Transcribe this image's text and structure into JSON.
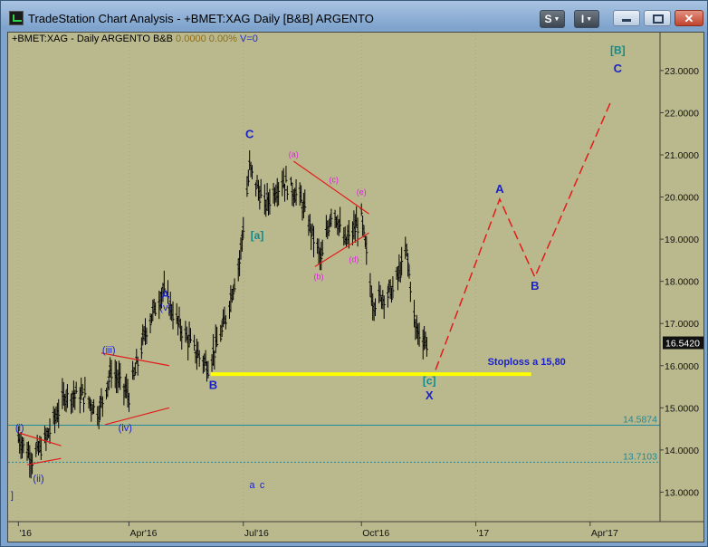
{
  "window": {
    "title": "TradeStation Chart Analysis - +BMET:XAG Daily [B&B] ARGENTO",
    "s_button": "S",
    "i_button": "I"
  },
  "chart_header": {
    "symbol": "+BMET:XAG - Daily ARGENTO B&B",
    "value1": "0.0000",
    "value2": "0.00%",
    "vlabel": "V=0"
  },
  "colors": {
    "background": "#bab98e",
    "bars": "#000000",
    "projection": "#e21b1b",
    "stoploss_line": "#ffff00",
    "wave_labels": "#1a22c8",
    "subwave_labels": "#e020e0",
    "bracket_labels": "#108a8a",
    "hlines": "#1f8a9a"
  },
  "chart_data": {
    "type": "candlestick",
    "y_axis": {
      "ticks": [
        "13.0000",
        "14.0000",
        "15.0000",
        "16.0000",
        "17.0000",
        "18.0000",
        "19.0000",
        "20.0000",
        "21.0000",
        "22.0000",
        "23.0000"
      ],
      "range": [
        12.3,
        23.9
      ],
      "last_price": "16.5420"
    },
    "x_axis": {
      "labels": [
        {
          "text": "'16",
          "date": "2016-01-04"
        },
        {
          "text": "Apr'16",
          "date": "2016-04-01"
        },
        {
          "text": "Jul'16",
          "date": "2016-07-01"
        },
        {
          "text": "Oct'16",
          "date": "2016-10-03"
        },
        {
          "text": "'17",
          "date": "2017-01-02"
        },
        {
          "text": "Apr'17",
          "date": "2017-04-03"
        }
      ]
    },
    "price_path": [
      [
        "2016-01-04",
        14.3
      ],
      [
        "2016-01-15",
        13.8
      ],
      [
        "2016-01-25",
        14.2
      ],
      [
        "2016-02-10",
        15.3
      ],
      [
        "2016-02-25",
        15.3
      ],
      [
        "2016-03-08",
        14.9
      ],
      [
        "2016-03-18",
        15.9
      ],
      [
        "2016-04-01",
        15.3
      ],
      [
        "2016-04-15",
        16.9
      ],
      [
        "2016-04-28",
        17.8
      ],
      [
        "2016-05-10",
        17.0
      ],
      [
        "2016-05-25",
        16.3
      ],
      [
        "2016-06-03",
        16.0
      ],
      [
        "2016-06-15",
        16.9
      ],
      [
        "2016-06-28",
        18.5
      ],
      [
        "2016-07-06",
        20.7
      ],
      [
        "2016-07-18",
        19.8
      ],
      [
        "2016-08-01",
        20.4
      ],
      [
        "2016-08-15",
        20.0
      ],
      [
        "2016-09-01",
        18.5
      ],
      [
        "2016-09-10",
        19.8
      ],
      [
        "2016-09-20",
        18.9
      ],
      [
        "2016-10-03",
        19.5
      ],
      [
        "2016-10-12",
        17.5
      ],
      [
        "2016-10-28",
        17.8
      ],
      [
        "2016-11-08",
        18.7
      ],
      [
        "2016-11-15",
        16.9
      ],
      [
        "2016-11-24",
        16.55
      ]
    ],
    "levels": [
      {
        "label": "14.5874",
        "value": 14.5874,
        "style": "solid"
      },
      {
        "label": "13.7103",
        "value": 13.7103,
        "style": "dotted"
      }
    ],
    "stoploss": {
      "label": "Stoploss  a 15,80",
      "value": 15.8,
      "from": "2016-06-05",
      "to": "2017-02-15"
    },
    "projection": [
      [
        "2016-12-01",
        15.9
      ],
      [
        "2017-01-21",
        19.95
      ],
      [
        "2017-02-18",
        18.1
      ],
      [
        "2017-04-20",
        22.3
      ]
    ],
    "annotations": [
      {
        "text": "(i)",
        "date": "2016-01-05",
        "value": 14.45,
        "kind": "blue"
      },
      {
        "text": "(ii)",
        "date": "2016-01-20",
        "value": 13.25,
        "kind": "blue"
      },
      {
        "text": "(iii)",
        "date": "2016-03-16",
        "value": 16.3,
        "kind": "blue"
      },
      {
        "text": "(iv)",
        "date": "2016-03-29",
        "value": 14.45,
        "kind": "blue"
      },
      {
        "text": "(v)",
        "date": "2016-04-30",
        "value": 17.3,
        "kind": "blue"
      },
      {
        "text": "A",
        "date": "2016-04-30",
        "value": 17.6,
        "kind": "blue-big"
      },
      {
        "text": "B",
        "date": "2016-06-07",
        "value": 15.45,
        "kind": "blue-big"
      },
      {
        "text": "C",
        "date": "2016-07-06",
        "value": 21.4,
        "kind": "blue-big"
      },
      {
        "text": "[a]",
        "date": "2016-07-12",
        "value": 19.0,
        "kind": "bracket"
      },
      {
        "text": "(a)",
        "date": "2016-08-10",
        "value": 20.95,
        "kind": "sub"
      },
      {
        "text": "(b)",
        "date": "2016-08-30",
        "value": 18.05,
        "kind": "sub"
      },
      {
        "text": "(c)",
        "date": "2016-09-11",
        "value": 20.35,
        "kind": "sub"
      },
      {
        "text": "(d)",
        "date": "2016-09-27",
        "value": 18.45,
        "kind": "sub"
      },
      {
        "text": "(e)",
        "date": "2016-10-03",
        "value": 20.05,
        "kind": "sub"
      },
      {
        "text": "[c]",
        "date": "2016-11-26",
        "value": 15.55,
        "kind": "bracket"
      },
      {
        "text": "X",
        "date": "2016-11-26",
        "value": 15.2,
        "kind": "blue-big"
      },
      {
        "text": "A",
        "date": "2017-01-21",
        "value": 20.1,
        "kind": "blue-big"
      },
      {
        "text": "B",
        "date": "2017-02-18",
        "value": 17.8,
        "kind": "blue-big"
      },
      {
        "text": "[B]",
        "date": "2017-04-25",
        "value": 23.4,
        "kind": "bracket"
      },
      {
        "text": "C",
        "date": "2017-04-25",
        "value": 22.95,
        "kind": "blue-big"
      },
      {
        "text": "a",
        "date": "2016-07-08",
        "value": 13.1,
        "kind": "blue"
      },
      {
        "text": "c",
        "date": "2016-07-16",
        "value": 13.1,
        "kind": "blue"
      },
      {
        "text": "]",
        "date": "2015-12-30",
        "value": 12.85,
        "kind": "blue"
      }
    ],
    "trendlines": [
      {
        "from": [
          "2016-01-05",
          14.4
        ],
        "to": [
          "2016-02-07",
          14.1
        ]
      },
      {
        "from": [
          "2016-01-11",
          13.65
        ],
        "to": [
          "2016-02-07",
          13.8
        ]
      },
      {
        "from": [
          "2016-03-10",
          16.3
        ],
        "to": [
          "2016-05-03",
          16.0
        ]
      },
      {
        "from": [
          "2016-03-13",
          14.6
        ],
        "to": [
          "2016-05-03",
          15.0
        ]
      },
      {
        "from": [
          "2016-08-10",
          20.85
        ],
        "to": [
          "2016-10-09",
          19.6
        ]
      },
      {
        "from": [
          "2016-08-27",
          18.35
        ],
        "to": [
          "2016-10-09",
          19.15
        ]
      }
    ]
  }
}
